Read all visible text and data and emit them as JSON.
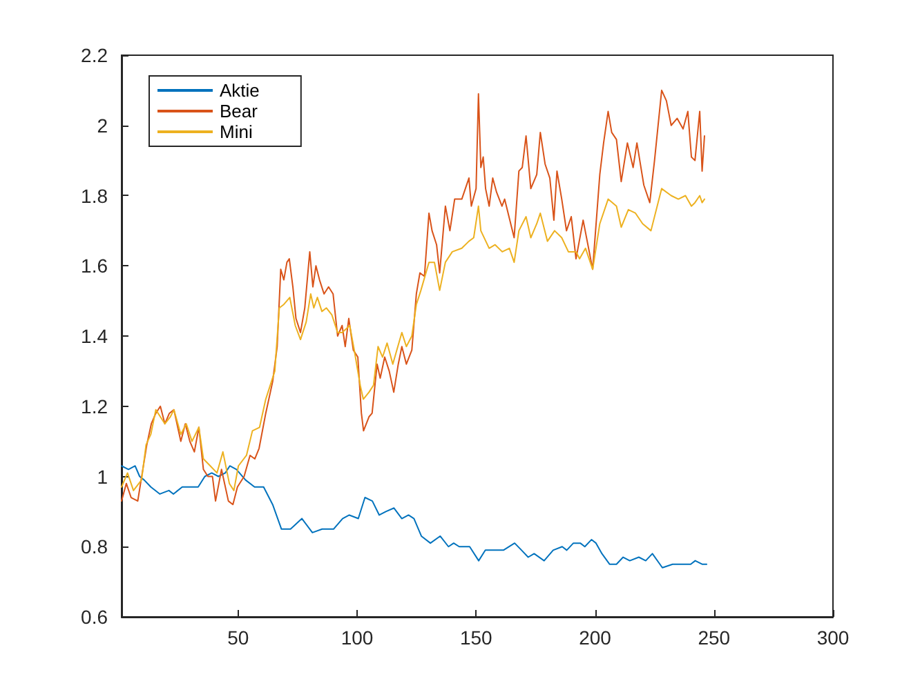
{
  "chart_data": {
    "type": "line",
    "xlim": [
      1,
      300
    ],
    "xticks": [
      50,
      100,
      150,
      200,
      250,
      300
    ],
    "ylim": [
      0.6,
      2.2
    ],
    "yticks": [
      0.6,
      0.8,
      1,
      1.2,
      1.4,
      1.6,
      1.8,
      2,
      2.2
    ],
    "grid": false,
    "legend": "top left",
    "marker": "none",
    "line_style": "solid",
    "series": [
      {
        "name": "Aktie",
        "color": "#0072bd",
        "x": [
          1,
          3.9,
          6.7,
          8.6,
          10.5,
          13.3,
          17.1,
          20.9,
          22.8,
          26.5,
          30.3,
          33.2,
          36,
          38.9,
          41.7,
          44.6,
          46.5,
          49.3,
          53.1,
          56.9,
          60.7,
          64.5,
          68.2,
          72,
          76.8,
          81.2,
          85.3,
          90.1,
          93.9,
          96.7,
          100.5,
          103.3,
          106.4,
          109.3,
          112.1,
          115.5,
          118.8,
          121.6,
          123.9,
          127,
          130.8,
          134.9,
          138.4,
          140.6,
          142.9,
          147.3,
          151.1,
          153.9,
          157.7,
          161.5,
          166.2,
          169.1,
          171.9,
          174.4,
          178.6,
          182.4,
          186.2,
          188.1,
          190.9,
          193.8,
          195.7,
          198.5,
          200.4,
          202.9,
          206.1,
          209,
          211.8,
          214.6,
          218.4,
          221.3,
          224.1,
          228.3,
          232.6,
          237.4,
          240.2,
          242.1,
          245,
          246.9
        ],
        "values": [
          1.03,
          1.02,
          1.03,
          1.0,
          0.99,
          0.97,
          0.95,
          0.96,
          0.95,
          0.97,
          0.97,
          0.97,
          1.0,
          1.01,
          1.0,
          1.01,
          1.03,
          1.02,
          0.99,
          0.97,
          0.97,
          0.92,
          0.85,
          0.85,
          0.88,
          0.84,
          0.85,
          0.85,
          0.88,
          0.89,
          0.88,
          0.94,
          0.93,
          0.89,
          0.9,
          0.91,
          0.88,
          0.89,
          0.88,
          0.83,
          0.81,
          0.83,
          0.8,
          0.81,
          0.8,
          0.8,
          0.76,
          0.79,
          0.79,
          0.79,
          0.81,
          0.79,
          0.77,
          0.78,
          0.76,
          0.79,
          0.8,
          0.79,
          0.81,
          0.81,
          0.8,
          0.82,
          0.81,
          0.78,
          0.75,
          0.75,
          0.77,
          0.76,
          0.77,
          0.76,
          0.78,
          0.74,
          0.75,
          0.75,
          0.75,
          0.76,
          0.75,
          0.75
        ]
      },
      {
        "name": "Bear",
        "color": "#d95319",
        "x": [
          1,
          3,
          5,
          7.8,
          9.7,
          11.6,
          13.5,
          15.4,
          17.3,
          19.2,
          21.1,
          23,
          25.9,
          27.8,
          29.7,
          31.6,
          33.5,
          35.4,
          37.3,
          39.2,
          40.5,
          43,
          45.9,
          47.8,
          49.7,
          52.5,
          55,
          57,
          58.8,
          61.6,
          64.5,
          66.4,
          67.9,
          69.2,
          70.5,
          71.5,
          73,
          74.3,
          76.2,
          78,
          80.1,
          81.4,
          82.7,
          84.2,
          86.1,
          88,
          89.9,
          91.8,
          93.7,
          95,
          96.5,
          98.4,
          100.3,
          101.8,
          102.7,
          105,
          106.3,
          108.4,
          109.7,
          111.6,
          113.5,
          115.4,
          117.3,
          118.8,
          120.7,
          123,
          124.9,
          126.4,
          128.3,
          130.2,
          131.5,
          133.4,
          134.7,
          137.1,
          139,
          141,
          144,
          147,
          148,
          150,
          151,
          152,
          153,
          154,
          155.5,
          157,
          158.6,
          160.9,
          162,
          166,
          168,
          169.4,
          171,
          173,
          175.5,
          177,
          179,
          181,
          182.7,
          184,
          186,
          188,
          190,
          192,
          195,
          199,
          202,
          203.6,
          205.5,
          207,
          209,
          211,
          213.6,
          216,
          217.6,
          220.5,
          223,
          225,
          228,
          230,
          232,
          234.5,
          237,
          239,
          240.5,
          242,
          244,
          245,
          246
        ],
        "values": [
          0.93,
          0.98,
          0.94,
          0.93,
          1.01,
          1.09,
          1.15,
          1.18,
          1.2,
          1.15,
          1.18,
          1.19,
          1.1,
          1.15,
          1.1,
          1.07,
          1.14,
          1.02,
          1.0,
          1.0,
          0.93,
          1.02,
          0.93,
          0.92,
          0.97,
          1.0,
          1.06,
          1.05,
          1.08,
          1.18,
          1.27,
          1.37,
          1.59,
          1.56,
          1.61,
          1.62,
          1.54,
          1.45,
          1.41,
          1.48,
          1.64,
          1.54,
          1.6,
          1.56,
          1.52,
          1.54,
          1.52,
          1.4,
          1.43,
          1.37,
          1.45,
          1.36,
          1.34,
          1.18,
          1.13,
          1.17,
          1.18,
          1.32,
          1.28,
          1.34,
          1.3,
          1.24,
          1.32,
          1.37,
          1.32,
          1.36,
          1.52,
          1.58,
          1.57,
          1.75,
          1.7,
          1.66,
          1.58,
          1.77,
          1.7,
          1.79,
          1.79,
          1.85,
          1.77,
          1.82,
          2.09,
          1.88,
          1.91,
          1.82,
          1.77,
          1.85,
          1.81,
          1.77,
          1.79,
          1.68,
          1.87,
          1.88,
          1.97,
          1.82,
          1.86,
          1.98,
          1.89,
          1.85,
          1.73,
          1.87,
          1.79,
          1.7,
          1.74,
          1.62,
          1.73,
          1.59,
          1.86,
          1.95,
          2.04,
          1.98,
          1.96,
          1.84,
          1.95,
          1.88,
          1.95,
          1.83,
          1.78,
          1.9,
          2.1,
          2.07,
          2.0,
          2.02,
          1.99,
          2.04,
          1.91,
          1.9,
          2.04,
          1.87,
          1.97
        ]
      },
      {
        "name": "Mini",
        "color": "#edb120",
        "x": [
          1,
          3.5,
          6,
          9.4,
          11.3,
          13.3,
          15.4,
          17.3,
          19.2,
          21.5,
          23,
          25.9,
          28.2,
          30.6,
          33.5,
          35.4,
          38.3,
          41.1,
          43.6,
          46.3,
          48.2,
          50.1,
          53.5,
          56,
          59,
          61.6,
          65.4,
          67.3,
          69.2,
          71.7,
          74,
          76.2,
          78.6,
          80.5,
          81.8,
          83.3,
          85.2,
          87.1,
          89.4,
          91.8,
          93.7,
          96.9,
          98.8,
          101.3,
          102.6,
          105,
          106.9,
          108.8,
          110.7,
          112.6,
          115,
          118.8,
          120.7,
          123,
          124.9,
          126.8,
          130.2,
          132.5,
          134.7,
          137.1,
          140,
          144,
          147,
          149,
          151,
          152,
          155.5,
          158,
          161,
          164,
          166,
          168,
          171,
          173,
          175.5,
          177,
          180,
          183,
          186,
          188.8,
          192,
          193.5,
          196,
          199,
          202,
          205.5,
          209,
          211,
          214,
          217,
          220,
          223.5,
          228,
          232,
          235,
          238,
          240.5,
          242,
          244,
          245,
          246
        ],
        "values": [
          0.97,
          1.01,
          0.96,
          0.99,
          1.09,
          1.12,
          1.19,
          1.17,
          1.15,
          1.17,
          1.19,
          1.12,
          1.15,
          1.1,
          1.14,
          1.05,
          1.03,
          1.01,
          1.07,
          0.98,
          0.96,
          1.03,
          1.06,
          1.13,
          1.14,
          1.22,
          1.3,
          1.48,
          1.49,
          1.51,
          1.43,
          1.39,
          1.44,
          1.52,
          1.48,
          1.51,
          1.47,
          1.48,
          1.46,
          1.41,
          1.41,
          1.43,
          1.36,
          1.26,
          1.22,
          1.24,
          1.26,
          1.37,
          1.34,
          1.38,
          1.32,
          1.41,
          1.37,
          1.4,
          1.49,
          1.53,
          1.61,
          1.61,
          1.53,
          1.61,
          1.64,
          1.65,
          1.67,
          1.68,
          1.77,
          1.7,
          1.65,
          1.66,
          1.64,
          1.65,
          1.61,
          1.7,
          1.74,
          1.68,
          1.72,
          1.75,
          1.67,
          1.7,
          1.68,
          1.64,
          1.64,
          1.62,
          1.65,
          1.59,
          1.72,
          1.79,
          1.77,
          1.71,
          1.76,
          1.75,
          1.72,
          1.7,
          1.82,
          1.8,
          1.79,
          1.8,
          1.77,
          1.78,
          1.8,
          1.78,
          1.79
        ]
      }
    ]
  }
}
